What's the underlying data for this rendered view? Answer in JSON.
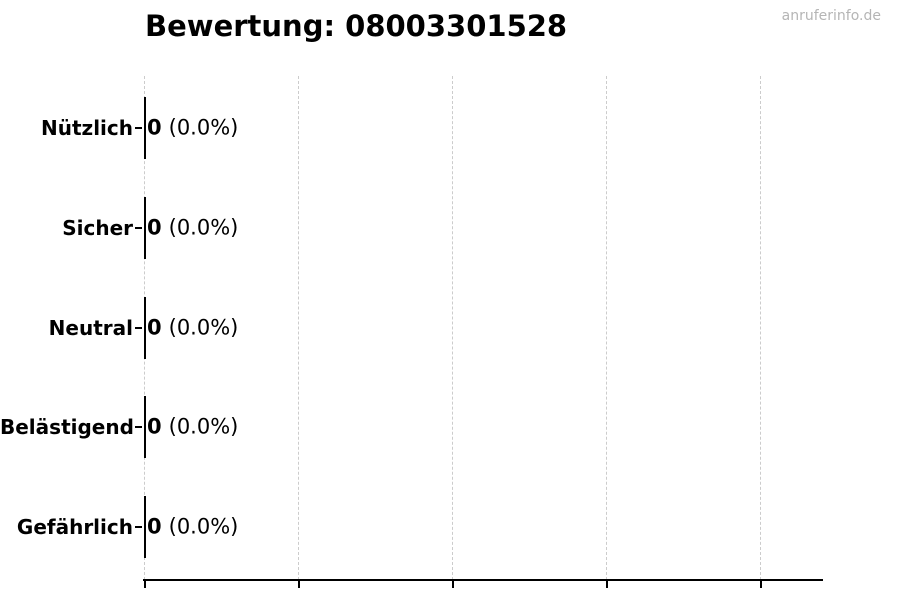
{
  "header": {
    "watermark": "anruferinfo.de"
  },
  "chart_data": {
    "type": "bar",
    "orientation": "horizontal",
    "title": "Bewertung: 08003301528",
    "categories": [
      "Nützlich",
      "Sicher",
      "Neutral",
      "Belästigend",
      "Gefährlich"
    ],
    "values": [
      0,
      0,
      0,
      0,
      0
    ],
    "percentages": [
      0.0,
      0.0,
      0.0,
      0.0,
      0.0
    ],
    "value_labels": [
      "(0.0%)",
      "(0.0%)",
      "(0.0%)",
      "(0.0%)",
      "(0.0%)"
    ],
    "xlabel": "",
    "ylabel": "",
    "x_tick_count": 5,
    "x_tick_labels_visible": false,
    "grid": "vertical-dashed",
    "legend": "none",
    "bar_edge_color": "#000000"
  },
  "colors": {
    "background": "#ffffff",
    "text": "#000000",
    "watermark": "#b5b5b5",
    "gridline": "#cccccc",
    "axis": "#000000"
  }
}
